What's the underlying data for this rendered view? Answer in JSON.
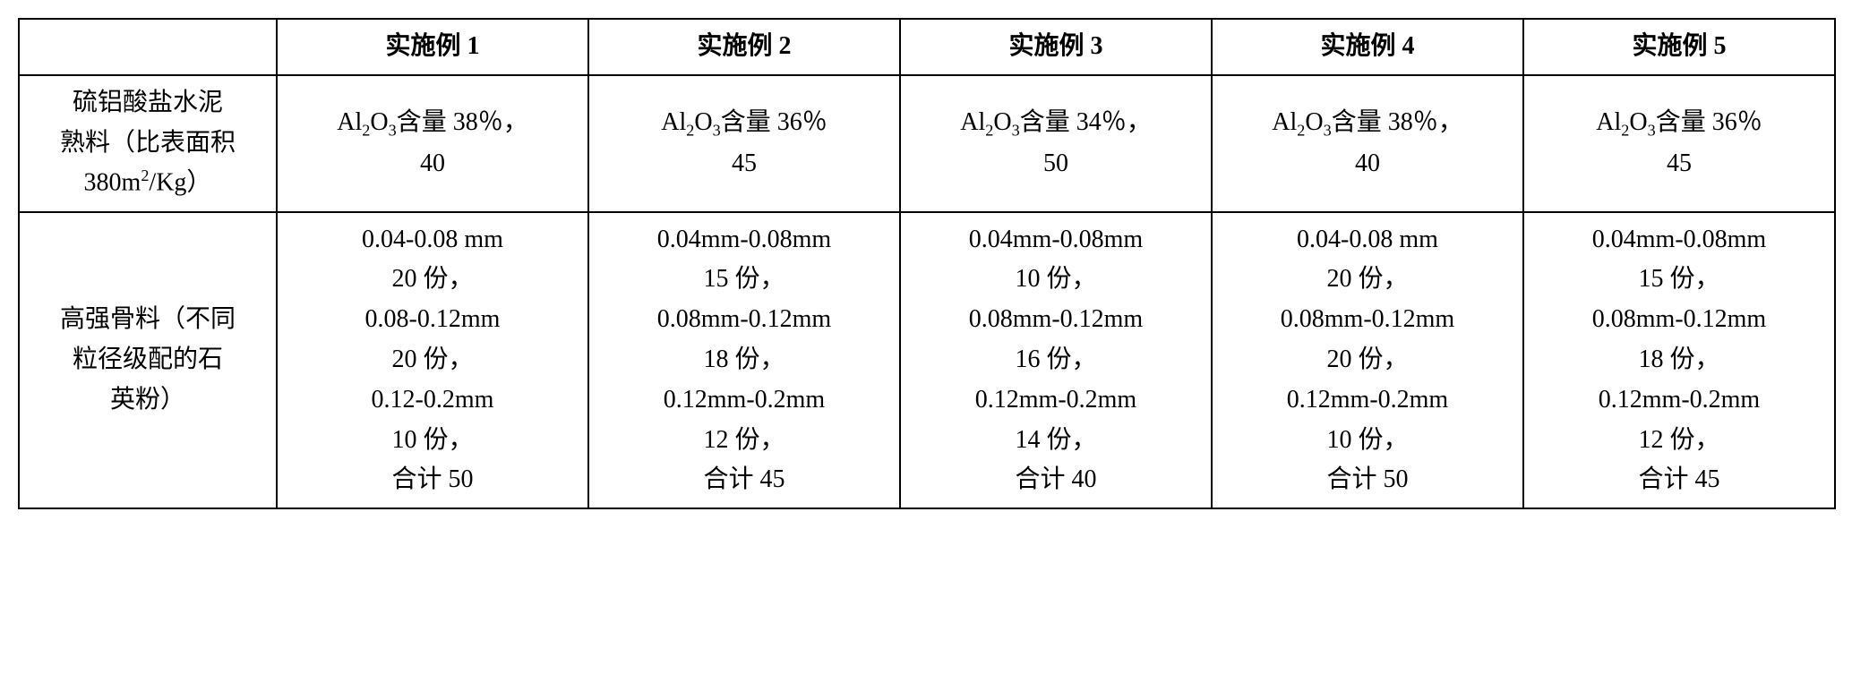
{
  "table": {
    "headers": [
      "",
      "实施例 1",
      "实施例 2",
      "实施例 3",
      "实施例 4",
      "实施例 5"
    ],
    "row1": {
      "label_line1": "硫铝酸盐水泥",
      "label_line2": "熟料（比表面积",
      "label_line3_pre": "380m",
      "label_line3_sup": "2",
      "label_line3_post": "/Kg）",
      "cells": [
        {
          "pre": "Al",
          "sub1": "2",
          "mid": "O",
          "sub2": "3",
          "post": "含量 38％，",
          "value": "40"
        },
        {
          "pre": "Al",
          "sub1": "2",
          "mid": "O",
          "sub2": "3",
          "post": "含量 36％",
          "value": "45"
        },
        {
          "pre": "Al",
          "sub1": "2",
          "mid": "O",
          "sub2": "3",
          "post": "含量 34％，",
          "value": "50"
        },
        {
          "pre": "Al",
          "sub1": "2",
          "mid": "O",
          "sub2": "3",
          "post": "含量 38％，",
          "value": "40"
        },
        {
          "pre": "Al",
          "sub1": "2",
          "mid": "O",
          "sub2": "3",
          "post": "含量 36％",
          "value": "45"
        }
      ]
    },
    "row2": {
      "label_line1": "高强骨料（不同",
      "label_line2": "粒径级配的石",
      "label_line3": "英粉）",
      "cells": [
        "0.04-0.08  mm\n20 份，\n0.08-0.12mm\n20 份，\n0.12-0.2mm\n10 份，\n合计 50",
        "0.04mm-0.08mm\n15 份，\n0.08mm-0.12mm\n18 份，\n0.12mm-0.2mm\n12 份，\n合计 45",
        "0.04mm-0.08mm\n10 份，\n0.08mm-0.12mm\n16 份，\n0.12mm-0.2mm\n14 份，\n合计 40",
        "0.04-0.08  mm\n20 份，\n0.08mm-0.12mm\n20 份，\n0.12mm-0.2mm\n10 份，\n合计 50",
        "0.04mm-0.08mm\n15 份，\n0.08mm-0.12mm\n18 份，\n0.12mm-0.2mm\n12 份，\n合计 45"
      ]
    }
  }
}
